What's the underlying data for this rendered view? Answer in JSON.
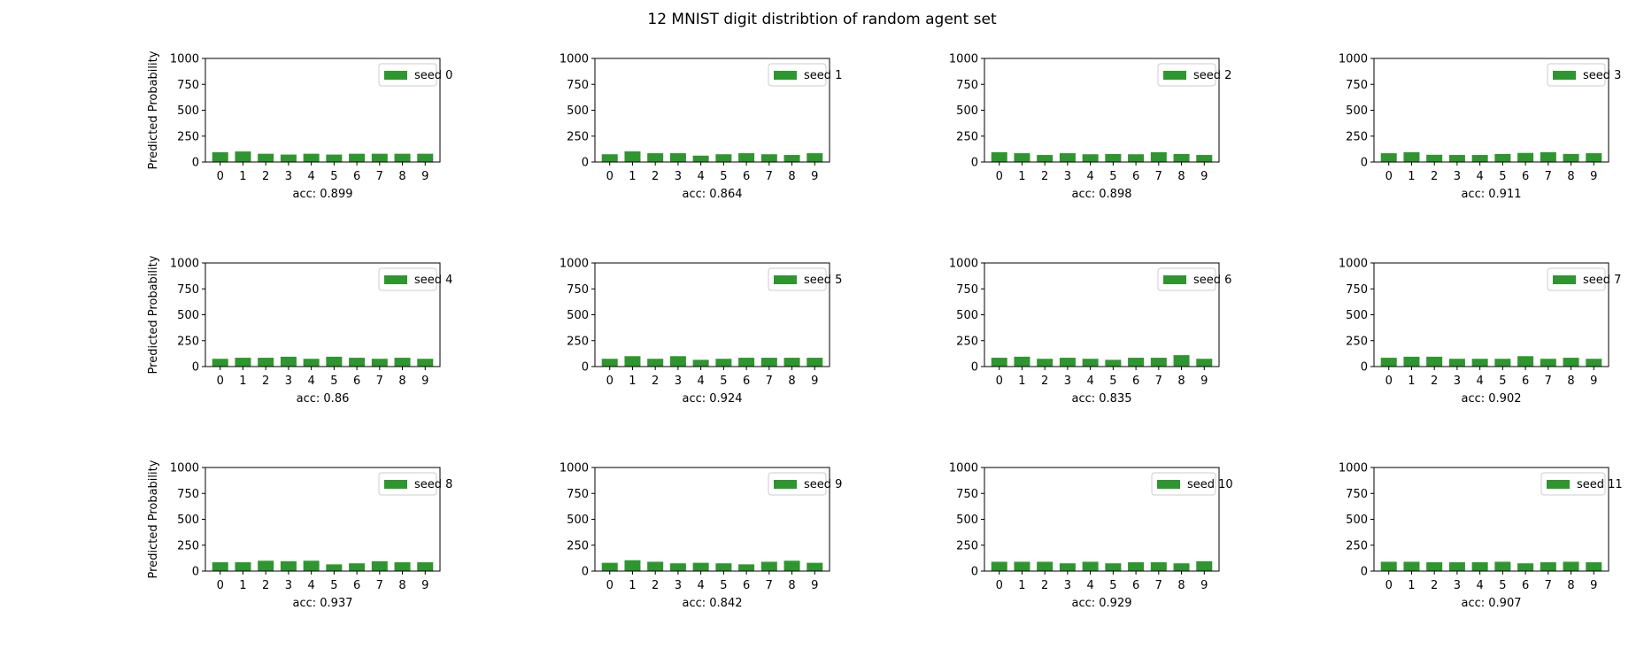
{
  "figure": {
    "title": "12 MNIST digit distribtion of random agent set"
  },
  "colors": {
    "bar": "#2e962e",
    "axis": "#000000",
    "legend_border": "#cccccc",
    "background": "#ffffff"
  },
  "chart_data": [
    {
      "type": "bar",
      "categories": [
        "0",
        "1",
        "2",
        "3",
        "4",
        "5",
        "6",
        "7",
        "8",
        "9"
      ],
      "series": [
        {
          "name": "seed 0",
          "values": [
            95,
            102,
            80,
            72,
            80,
            72,
            80,
            80,
            80,
            80
          ]
        }
      ],
      "ylabel": "Predicted Probability",
      "xlabel": "acc: 0.899",
      "ylim": [
        0,
        1000
      ],
      "yticks": [
        0,
        250,
        500,
        750,
        1000
      ],
      "legend": "top-right",
      "grid": false
    },
    {
      "type": "bar",
      "categories": [
        "0",
        "1",
        "2",
        "3",
        "4",
        "5",
        "6",
        "7",
        "8",
        "9"
      ],
      "series": [
        {
          "name": "seed 1",
          "values": [
            75,
            103,
            85,
            85,
            62,
            75,
            85,
            75,
            68,
            85
          ]
        }
      ],
      "ylabel": "",
      "xlabel": "acc: 0.864",
      "ylim": [
        0,
        1000
      ],
      "yticks": [
        0,
        250,
        500,
        750,
        1000
      ],
      "legend": "top-right",
      "grid": false
    },
    {
      "type": "bar",
      "categories": [
        "0",
        "1",
        "2",
        "3",
        "4",
        "5",
        "6",
        "7",
        "8",
        "9"
      ],
      "series": [
        {
          "name": "seed 2",
          "values": [
            95,
            85,
            68,
            85,
            75,
            78,
            75,
            95,
            78,
            68
          ]
        }
      ],
      "ylabel": "",
      "xlabel": "acc: 0.898",
      "ylim": [
        0,
        1000
      ],
      "yticks": [
        0,
        250,
        500,
        750,
        1000
      ],
      "legend": "top-right",
      "grid": false
    },
    {
      "type": "bar",
      "categories": [
        "0",
        "1",
        "2",
        "3",
        "4",
        "5",
        "6",
        "7",
        "8",
        "9"
      ],
      "series": [
        {
          "name": "seed 3",
          "values": [
            85,
            95,
            70,
            68,
            68,
            78,
            88,
            95,
            78,
            85
          ]
        }
      ],
      "ylabel": "",
      "xlabel": "acc: 0.911",
      "ylim": [
        0,
        1000
      ],
      "yticks": [
        0,
        250,
        500,
        750,
        1000
      ],
      "legend": "top-right",
      "grid": false
    },
    {
      "type": "bar",
      "categories": [
        "0",
        "1",
        "2",
        "3",
        "4",
        "5",
        "6",
        "7",
        "8",
        "9"
      ],
      "series": [
        {
          "name": "seed 4",
          "values": [
            75,
            85,
            85,
            95,
            75,
            95,
            85,
            75,
            85,
            75
          ]
        }
      ],
      "ylabel": "Predicted Probability",
      "xlabel": "acc: 0.86",
      "ylim": [
        0,
        1000
      ],
      "yticks": [
        0,
        250,
        500,
        750,
        1000
      ],
      "legend": "top-right",
      "grid": false
    },
    {
      "type": "bar",
      "categories": [
        "0",
        "1",
        "2",
        "3",
        "4",
        "5",
        "6",
        "7",
        "8",
        "9"
      ],
      "series": [
        {
          "name": "seed 5",
          "values": [
            75,
            100,
            75,
            100,
            65,
            75,
            85,
            85,
            85,
            85
          ]
        }
      ],
      "ylabel": "",
      "xlabel": "acc: 0.924",
      "ylim": [
        0,
        1000
      ],
      "yticks": [
        0,
        250,
        500,
        750,
        1000
      ],
      "legend": "top-right",
      "grid": false
    },
    {
      "type": "bar",
      "categories": [
        "0",
        "1",
        "2",
        "3",
        "4",
        "5",
        "6",
        "7",
        "8",
        "9"
      ],
      "series": [
        {
          "name": "seed 6",
          "values": [
            85,
            95,
            75,
            85,
            75,
            65,
            85,
            85,
            110,
            75
          ]
        }
      ],
      "ylabel": "",
      "xlabel": "acc: 0.835",
      "ylim": [
        0,
        1000
      ],
      "yticks": [
        0,
        250,
        500,
        750,
        1000
      ],
      "legend": "top-right",
      "grid": false
    },
    {
      "type": "bar",
      "categories": [
        "0",
        "1",
        "2",
        "3",
        "4",
        "5",
        "6",
        "7",
        "8",
        "9"
      ],
      "series": [
        {
          "name": "seed 7",
          "values": [
            85,
            95,
            95,
            75,
            75,
            75,
            100,
            75,
            85,
            75
          ]
        }
      ],
      "ylabel": "",
      "xlabel": "acc: 0.902",
      "ylim": [
        0,
        1000
      ],
      "yticks": [
        0,
        250,
        500,
        750,
        1000
      ],
      "legend": "top-right",
      "grid": false
    },
    {
      "type": "bar",
      "categories": [
        "0",
        "1",
        "2",
        "3",
        "4",
        "5",
        "6",
        "7",
        "8",
        "9"
      ],
      "series": [
        {
          "name": "seed 8",
          "values": [
            85,
            85,
            100,
            95,
            100,
            65,
            75,
            95,
            85,
            85
          ]
        }
      ],
      "ylabel": "Predicted Probability",
      "xlabel": "acc: 0.937",
      "ylim": [
        0,
        1000
      ],
      "yticks": [
        0,
        250,
        500,
        750,
        1000
      ],
      "legend": "top-right",
      "grid": false
    },
    {
      "type": "bar",
      "categories": [
        "0",
        "1",
        "2",
        "3",
        "4",
        "5",
        "6",
        "7",
        "8",
        "9"
      ],
      "series": [
        {
          "name": "seed 9",
          "values": [
            80,
            105,
            90,
            75,
            80,
            75,
            65,
            90,
            100,
            80
          ]
        }
      ],
      "ylabel": "",
      "xlabel": "acc: 0.842",
      "ylim": [
        0,
        1000
      ],
      "yticks": [
        0,
        250,
        500,
        750,
        1000
      ],
      "legend": "top-right",
      "grid": false
    },
    {
      "type": "bar",
      "categories": [
        "0",
        "1",
        "2",
        "3",
        "4",
        "5",
        "6",
        "7",
        "8",
        "9"
      ],
      "series": [
        {
          "name": "seed 10",
          "values": [
            90,
            90,
            90,
            75,
            90,
            75,
            85,
            85,
            75,
            95
          ]
        }
      ],
      "ylabel": "",
      "xlabel": "acc: 0.929",
      "ylim": [
        0,
        1000
      ],
      "yticks": [
        0,
        250,
        500,
        750,
        1000
      ],
      "legend": "top-right",
      "grid": false
    },
    {
      "type": "bar",
      "categories": [
        "0",
        "1",
        "2",
        "3",
        "4",
        "5",
        "6",
        "7",
        "8",
        "9"
      ],
      "series": [
        {
          "name": "seed 11",
          "values": [
            90,
            90,
            85,
            85,
            85,
            90,
            75,
            85,
            90,
            85
          ]
        }
      ],
      "ylabel": "",
      "xlabel": "acc: 0.907",
      "ylim": [
        0,
        1000
      ],
      "yticks": [
        0,
        250,
        500,
        750,
        1000
      ],
      "legend": "top-right",
      "grid": false
    }
  ]
}
